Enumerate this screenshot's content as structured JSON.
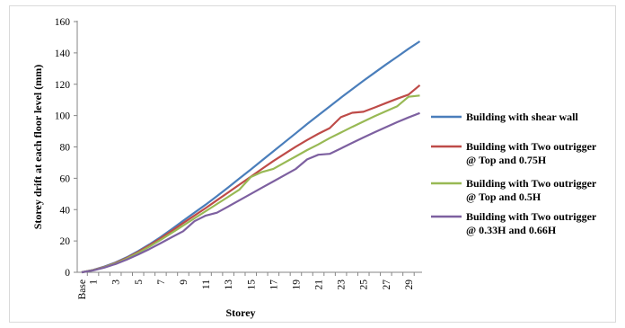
{
  "chart_data": {
    "type": "line",
    "title": "",
    "xlabel": "Storey",
    "ylabel": "Storey drift at each floor level (mm)",
    "ylim": [
      0,
      160
    ],
    "yticks": [
      0,
      20,
      40,
      60,
      80,
      100,
      120,
      140,
      160
    ],
    "categories": [
      "Base",
      "1",
      "2",
      "3",
      "4",
      "5",
      "6",
      "7",
      "8",
      "9",
      "10",
      "11",
      "12",
      "13",
      "14",
      "15",
      "16",
      "17",
      "18",
      "19",
      "20",
      "21",
      "22",
      "23",
      "24",
      "25",
      "26",
      "27",
      "28",
      "29",
      "30"
    ],
    "tick_labels": [
      "Base",
      "1",
      "3",
      "5",
      "7",
      "9",
      "11",
      "13",
      "15",
      "17",
      "19",
      "21",
      "23",
      "25",
      "27",
      "29"
    ],
    "grid": false,
    "legend_position": "right",
    "series": [
      {
        "name": "Building with shear wall",
        "color": "#4a7ebb",
        "values": [
          0,
          1.5,
          3.6,
          6.3,
          9.6,
          13.5,
          17.8,
          22.5,
          27.6,
          32.9,
          38.0,
          43.2,
          48.6,
          54.2,
          59.9,
          65.6,
          71.4,
          77.2,
          83.0,
          88.8,
          94.6,
          100.2,
          105.8,
          111.4,
          116.8,
          122.2,
          127.4,
          132.6,
          137.6,
          142.6,
          147.4
        ]
      },
      {
        "name": "Building with Two outrigger\n@ Top and 0.75H",
        "color": "#be4b48",
        "values": [
          0,
          1.4,
          3.4,
          6.0,
          9.2,
          13.0,
          17.2,
          21.7,
          26.5,
          31.4,
          36.2,
          41.0,
          46.0,
          51.0,
          56.0,
          61.0,
          66.0,
          71.0,
          75.6,
          80.2,
          84.4,
          88.4,
          92.0,
          99.0,
          101.8,
          102.4,
          105.2,
          108.0,
          110.8,
          113.4,
          119.4
        ]
      },
      {
        "name": "Building with Two outrigger\n@ Top and 0.5H",
        "color": "#98b954",
        "values": [
          0,
          1.3,
          3.2,
          5.7,
          8.8,
          12.4,
          16.4,
          20.7,
          25.2,
          29.8,
          34.4,
          39.0,
          43.6,
          48.2,
          52.8,
          60.8,
          64.0,
          66.0,
          70.0,
          74.0,
          78.0,
          81.6,
          85.6,
          89.2,
          92.8,
          96.2,
          99.6,
          102.8,
          106.0,
          112.0,
          112.8
        ]
      },
      {
        "name": "Building with Two outrigger\n@ 0.33H and 0.66H",
        "color": "#7d60a0",
        "values": [
          0,
          1.2,
          3.0,
          5.3,
          8.1,
          11.3,
          14.8,
          18.6,
          22.4,
          26.2,
          32.6,
          36.2,
          38.0,
          42.0,
          46.0,
          50.0,
          54.0,
          58.0,
          62.0,
          66.0,
          72.0,
          75.0,
          75.6,
          79.0,
          82.6,
          86.0,
          89.4,
          92.6,
          95.8,
          98.8,
          101.6
        ]
      }
    ]
  }
}
